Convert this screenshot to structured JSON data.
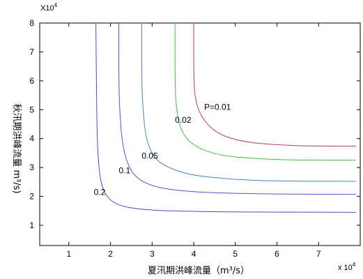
{
  "chart_data": {
    "type": "line",
    "title": "",
    "xlabel": "夏汛期洪峰流量（m³/s）",
    "ylabel": "秋汛期洪峰流量 m³/s)",
    "x_multiplier": "x 10",
    "x_multiplier_exp": "4",
    "y_multiplier": "X10",
    "y_multiplier_exp": "4",
    "xlim": [
      0.3,
      8.0
    ],
    "ylim": [
      0.3,
      8.0
    ],
    "xticks": [
      1,
      2,
      3,
      4,
      5,
      6,
      7
    ],
    "yticks": [
      1,
      2,
      3,
      4,
      5,
      6,
      7,
      8
    ],
    "grid": false,
    "series": [
      {
        "name": "P=0.01",
        "color": "#b04060",
        "label_at": [
          4.25,
          5.0
        ],
        "points": [
          [
            4.0,
            8.0
          ],
          [
            4.0,
            6.0
          ],
          [
            4.05,
            5.2
          ],
          [
            4.25,
            4.6
          ],
          [
            4.55,
            4.2
          ],
          [
            5.0,
            3.95
          ],
          [
            5.6,
            3.82
          ],
          [
            6.5,
            3.75
          ],
          [
            7.2,
            3.74
          ],
          [
            7.9,
            3.74
          ]
        ]
      },
      {
        "name": "0.02",
        "color": "#40c040",
        "label_at": [
          3.55,
          4.55
        ],
        "points": [
          [
            3.55,
            8.0
          ],
          [
            3.55,
            6.0
          ],
          [
            3.58,
            5.0
          ],
          [
            3.7,
            4.25
          ],
          [
            3.95,
            3.8
          ],
          [
            4.4,
            3.5
          ],
          [
            5.0,
            3.35
          ],
          [
            6.0,
            3.27
          ],
          [
            7.0,
            3.25
          ],
          [
            7.9,
            3.25
          ]
        ]
      },
      {
        "name": "0.05",
        "color": "#4a7fcf",
        "label_at": [
          2.75,
          3.3
        ],
        "points": [
          [
            2.75,
            8.0
          ],
          [
            2.75,
            6.0
          ],
          [
            2.78,
            5.0
          ],
          [
            2.85,
            4.0
          ],
          [
            3.05,
            3.3
          ],
          [
            3.45,
            2.95
          ],
          [
            4.0,
            2.72
          ],
          [
            5.0,
            2.58
          ],
          [
            6.0,
            2.53
          ],
          [
            7.9,
            2.52
          ]
        ]
      },
      {
        "name": "0.1",
        "color": "#5050d0",
        "label_at": [
          2.2,
          2.8
        ],
        "points": [
          [
            2.2,
            8.0
          ],
          [
            2.2,
            6.0
          ],
          [
            2.22,
            5.0
          ],
          [
            2.27,
            4.0
          ],
          [
            2.38,
            3.2
          ],
          [
            2.6,
            2.65
          ],
          [
            3.0,
            2.35
          ],
          [
            3.6,
            2.2
          ],
          [
            4.5,
            2.12
          ],
          [
            6.0,
            2.08
          ],
          [
            7.9,
            2.07
          ]
        ]
      },
      {
        "name": "0.2",
        "color": "#4848c8",
        "label_at": [
          1.6,
          2.05
        ],
        "points": [
          [
            1.65,
            8.0
          ],
          [
            1.66,
            6.0
          ],
          [
            1.68,
            4.0
          ],
          [
            1.72,
            3.0
          ],
          [
            1.78,
            2.4
          ],
          [
            1.92,
            1.95
          ],
          [
            2.2,
            1.68
          ],
          [
            2.7,
            1.55
          ],
          [
            3.5,
            1.49
          ],
          [
            5.0,
            1.46
          ],
          [
            7.9,
            1.45
          ]
        ]
      }
    ]
  }
}
